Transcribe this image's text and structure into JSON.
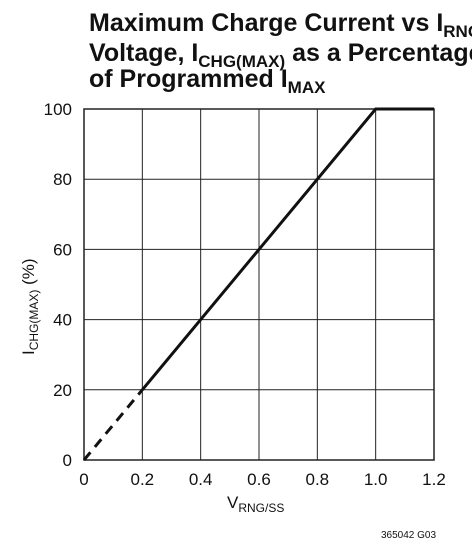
{
  "figure": {
    "title_line1": {
      "main": "Maximum Charge Current vs I",
      "sub": "RNG/SS"
    },
    "title_line2": {
      "pre": "Voltage, I",
      "sub": "CHG(MAX)",
      "post": " as a Percentage"
    },
    "title_line3": {
      "pre": "of Programmed I",
      "sub": "MAX"
    },
    "ylabel": {
      "pre": "I",
      "sub": "CHG(MAX)",
      "post": " (%)"
    },
    "xlabel": {
      "pre": "V",
      "sub": "RNG/SS"
    },
    "code": "365042 G03"
  },
  "chart_data": {
    "type": "line",
    "xlim": [
      0,
      1.2
    ],
    "ylim": [
      0,
      100
    ],
    "x_ticks": [
      "0",
      "0.2",
      "0.4",
      "0.6",
      "0.8",
      "1.0",
      "1.2"
    ],
    "y_ticks": [
      "0",
      "20",
      "40",
      "60",
      "80",
      "100"
    ],
    "grid": true,
    "series": [
      {
        "style": "dashed",
        "x": [
          0,
          0.2
        ],
        "y": [
          0,
          20
        ]
      },
      {
        "style": "solid",
        "x": [
          0.2,
          1.0,
          1.2
        ],
        "y": [
          20,
          100,
          100
        ]
      }
    ]
  }
}
